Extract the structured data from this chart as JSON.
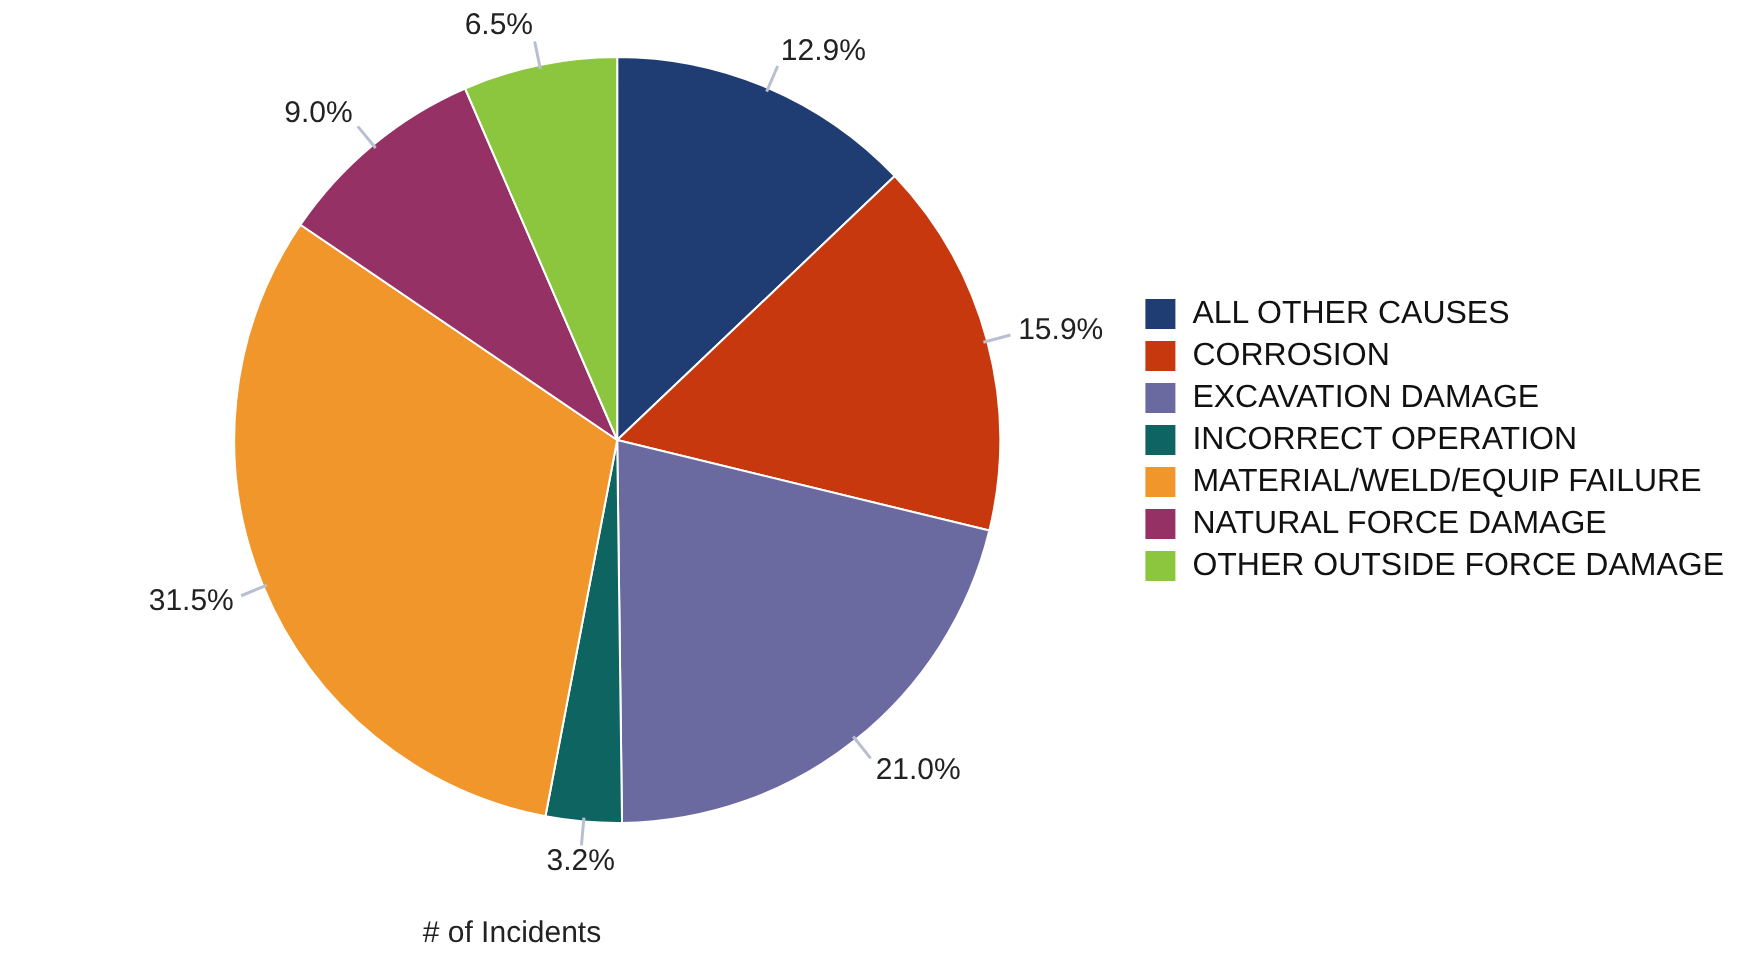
{
  "chart_data": {
    "type": "pie",
    "categories": [
      "ALL OTHER CAUSES",
      "CORROSION",
      "EXCAVATION DAMAGE",
      "INCORRECT OPERATION",
      "MATERIAL/WELD/EQUIP FAILURE",
      "NATURAL FORCE DAMAGE",
      "OTHER OUTSIDE FORCE DAMAGE"
    ],
    "values": [
      12.9,
      15.9,
      21.0,
      3.2,
      31.5,
      9.0,
      6.5
    ],
    "value_labels": [
      "12.9%",
      "15.9%",
      "21.0%",
      "3.2%",
      "31.5%",
      "9.0%",
      "6.5%"
    ],
    "colors": [
      "#1f3d73",
      "#c8380e",
      "#6b6aa0",
      "#0e6460",
      "#f0962a",
      "#953165",
      "#8cc63f"
    ],
    "legend": "right",
    "annotations": [
      "# of Incidents"
    ]
  }
}
